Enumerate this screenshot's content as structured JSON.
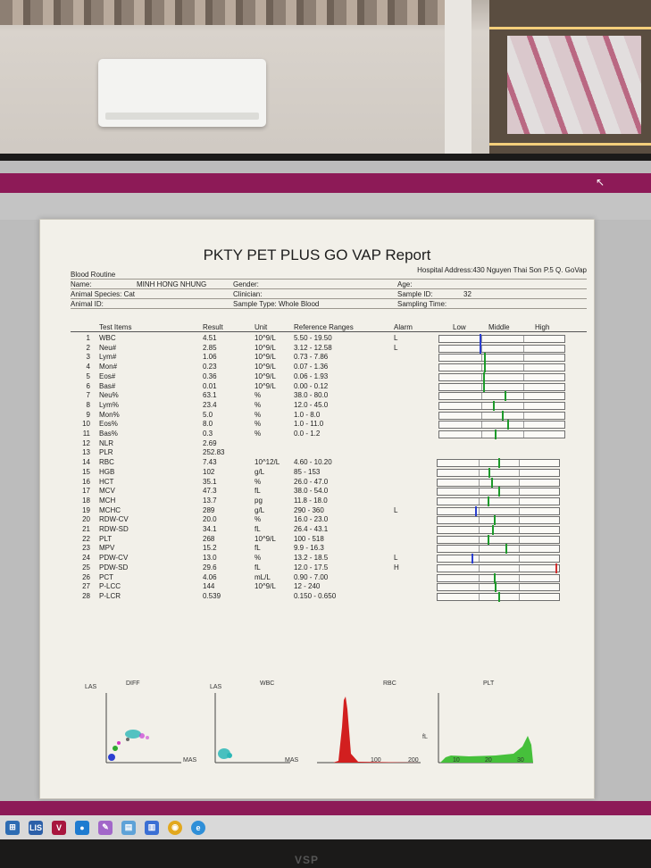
{
  "report": {
    "title": "PKTY PET PLUS GO VAP Report",
    "hospital": "Hospital Address:430 Nguyen Thai Son P.5 Q. GoVap",
    "section": "Blood Routine",
    "name_label": "Name:",
    "name_value": "MINH HONG NHUNG",
    "gender_label": "Gender:",
    "age_label": "Age:",
    "animal_species": "Animal Species: Cat",
    "clinician_label": "Clinician:",
    "sample_id_label": "Sample ID:",
    "sample_id_value": "32",
    "animal_id_label": "Animal ID:",
    "sample_type": "Sample Type: Whole Blood",
    "sampling_time_label": "Sampling Time:",
    "headers": {
      "items": "Test Items",
      "result": "Result",
      "unit": "Unit",
      "ref": "Reference Ranges",
      "alarm": "Alarm",
      "low": "Low",
      "middle": "Middle",
      "high": "High"
    },
    "rows": [
      {
        "no": "1",
        "name": "WBC",
        "result": "4.51",
        "unit": "10^9/L",
        "ref": "5.50 - 19.50",
        "alarm": "L",
        "bar": 0.32,
        "color": "#2b3fd0"
      },
      {
        "no": "2",
        "name": "Neu#",
        "result": "2.85",
        "unit": "10^9/L",
        "ref": "3.12 - 12.58",
        "alarm": "L",
        "bar": 0.32,
        "color": "#2b3fd0"
      },
      {
        "no": "3",
        "name": "Lym#",
        "result": "1.06",
        "unit": "10^9/L",
        "ref": "0.73 - 7.86",
        "alarm": "",
        "bar": 0.36,
        "color": "#1d9a2a"
      },
      {
        "no": "4",
        "name": "Mon#",
        "result": "0.23",
        "unit": "10^9/L",
        "ref": "0.07 - 1.36",
        "alarm": "",
        "bar": 0.36,
        "color": "#1d9a2a"
      },
      {
        "no": "5",
        "name": "Eos#",
        "result": "0.36",
        "unit": "10^9/L",
        "ref": "0.06 - 1.93",
        "alarm": "",
        "bar": 0.35,
        "color": "#1d9a2a"
      },
      {
        "no": "6",
        "name": "Bas#",
        "result": "0.01",
        "unit": "10^9/L",
        "ref": "0.00 - 0.12",
        "alarm": "",
        "bar": 0.35,
        "color": "#1d9a2a"
      },
      {
        "no": "7",
        "name": "Neu%",
        "result": "63.1",
        "unit": "%",
        "ref": "38.0 - 80.0",
        "alarm": "",
        "bar": 0.52,
        "color": "#1d9a2a"
      },
      {
        "no": "8",
        "name": "Lym%",
        "result": "23.4",
        "unit": "%",
        "ref": "12.0 - 45.0",
        "alarm": "",
        "bar": 0.43,
        "color": "#1d9a2a"
      },
      {
        "no": "9",
        "name": "Mon%",
        "result": "5.0",
        "unit": "%",
        "ref": "1.0 - 8.0",
        "alarm": "",
        "bar": 0.5,
        "color": "#1d9a2a"
      },
      {
        "no": "10",
        "name": "Eos%",
        "result": "8.0",
        "unit": "%",
        "ref": "1.0 - 11.0",
        "alarm": "",
        "bar": 0.54,
        "color": "#1d9a2a"
      },
      {
        "no": "11",
        "name": "Bas%",
        "result": "0.3",
        "unit": "%",
        "ref": "0.0 - 1.2",
        "alarm": "",
        "bar": 0.44,
        "color": "#1d9a2a"
      },
      {
        "no": "12",
        "name": "NLR",
        "result": "2.69",
        "unit": "",
        "ref": "",
        "alarm": "",
        "bar": null,
        "color": ""
      },
      {
        "no": "13",
        "name": "PLR",
        "result": "252.83",
        "unit": "",
        "ref": "",
        "alarm": "",
        "bar": null,
        "color": ""
      },
      {
        "no": "14",
        "name": "RBC",
        "result": "7.43",
        "unit": "10^12/L",
        "ref": "4.60 - 10.20",
        "alarm": "",
        "bar": 0.5,
        "color": "#1d9a2a"
      },
      {
        "no": "15",
        "name": "HGB",
        "result": "102",
        "unit": "g/L",
        "ref": "85 - 153",
        "alarm": "",
        "bar": 0.42,
        "color": "#1d9a2a"
      },
      {
        "no": "16",
        "name": "HCT",
        "result": "35.1",
        "unit": "%",
        "ref": "26.0 - 47.0",
        "alarm": "",
        "bar": 0.44,
        "color": "#1d9a2a"
      },
      {
        "no": "17",
        "name": "MCV",
        "result": "47.3",
        "unit": "fL",
        "ref": "38.0 - 54.0",
        "alarm": "",
        "bar": 0.5,
        "color": "#1d9a2a"
      },
      {
        "no": "18",
        "name": "MCH",
        "result": "13.7",
        "unit": "pg",
        "ref": "11.8 - 18.0",
        "alarm": "",
        "bar": 0.41,
        "color": "#1d9a2a"
      },
      {
        "no": "19",
        "name": "MCHC",
        "result": "289",
        "unit": "g/L",
        "ref": "290 - 360",
        "alarm": "L",
        "bar": 0.31,
        "color": "#2b3fd0"
      },
      {
        "no": "20",
        "name": "RDW-CV",
        "result": "20.0",
        "unit": "%",
        "ref": "16.0 - 23.0",
        "alarm": "",
        "bar": 0.46,
        "color": "#1d9a2a"
      },
      {
        "no": "21",
        "name": "RDW-SD",
        "result": "34.1",
        "unit": "fL",
        "ref": "26.4 - 43.1",
        "alarm": "",
        "bar": 0.45,
        "color": "#1d9a2a"
      },
      {
        "no": "22",
        "name": "PLT",
        "result": "268",
        "unit": "10^9/L",
        "ref": "100 - 518",
        "alarm": "",
        "bar": 0.41,
        "color": "#1d9a2a"
      },
      {
        "no": "23",
        "name": "MPV",
        "result": "15.2",
        "unit": "fL",
        "ref": "9.9 - 16.3",
        "alarm": "",
        "bar": 0.56,
        "color": "#1d9a2a"
      },
      {
        "no": "24",
        "name": "PDW-CV",
        "result": "13.0",
        "unit": "%",
        "ref": "13.2 - 18.5",
        "alarm": "L",
        "bar": 0.28,
        "color": "#2b3fd0"
      },
      {
        "no": "25",
        "name": "PDW-SD",
        "result": "29.6",
        "unit": "fL",
        "ref": "12.0 - 17.5",
        "alarm": "H",
        "bar": 0.97,
        "color": "#d23030"
      },
      {
        "no": "26",
        "name": "PCT",
        "result": "4.06",
        "unit": "mL/L",
        "ref": "0.90 - 7.00",
        "alarm": "",
        "bar": 0.46,
        "color": "#1d9a2a"
      },
      {
        "no": "27",
        "name": "P-LCC",
        "result": "144",
        "unit": "10^9/L",
        "ref": "12 - 240",
        "alarm": "",
        "bar": 0.47,
        "color": "#1d9a2a"
      },
      {
        "no": "28",
        "name": "P-LCR",
        "result": "0.539",
        "unit": "",
        "ref": "0.150 - 0.650",
        "alarm": "",
        "bar": 0.5,
        "color": "#1d9a2a"
      }
    ],
    "histograms": {
      "diff": "DIFF",
      "las1": "LAS",
      "mas1": "MAS",
      "las2": "LAS",
      "wbc": "WBC",
      "mas2": "MAS",
      "rbc": "RBC",
      "plt": "PLT",
      "fl": "fL",
      "rbc_tick1": "100",
      "rbc_tick2": "200",
      "plt_tick1": "10",
      "plt_tick2": "20",
      "plt_tick3": "30"
    }
  },
  "colors": {
    "magenta_bar": "#8d1a57",
    "normal": "#1d9a2a",
    "low": "#2b3fd0",
    "high": "#d23030"
  },
  "taskbar": {
    "icons": [
      "windows-icon",
      "lis-icon",
      "v-icon",
      "chat-icon",
      "brush-icon",
      "book-icon",
      "chart-icon",
      "chrome-icon",
      "browser-icon"
    ],
    "lis_label": "LIS",
    "v_label": "V"
  },
  "monitor": {
    "brand": "VSP"
  }
}
